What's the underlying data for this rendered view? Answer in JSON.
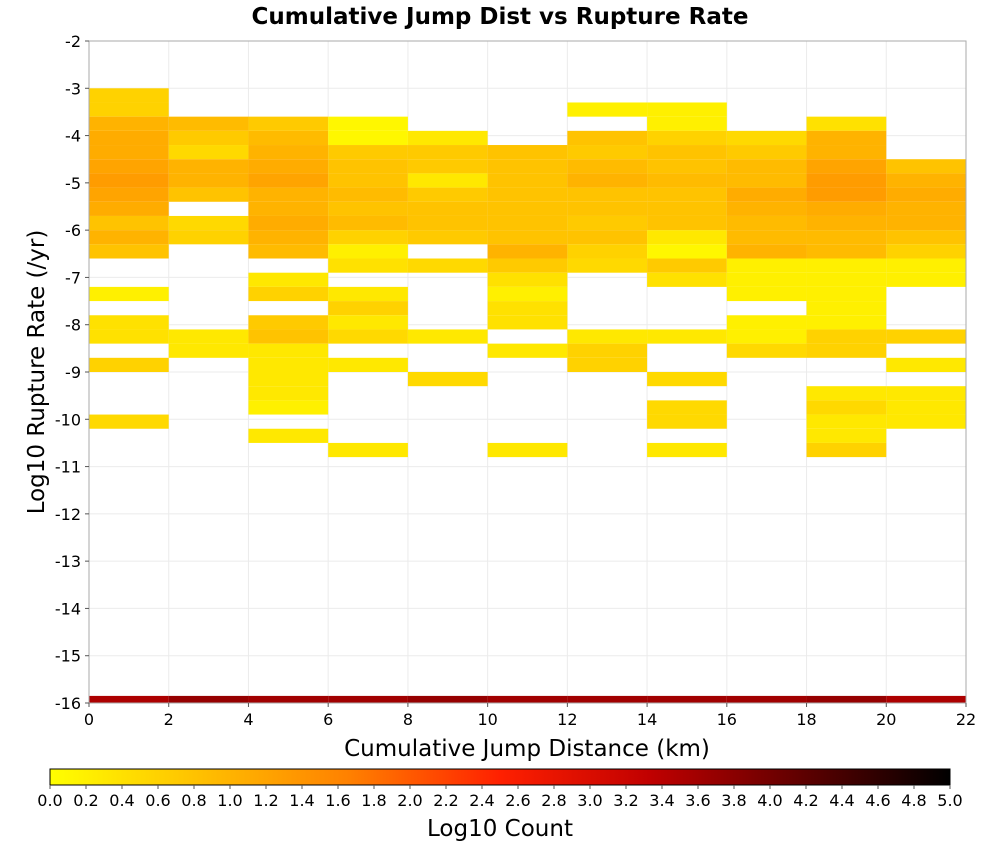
{
  "chart_data": {
    "type": "heatmap",
    "title": "Cumulative Jump Dist vs Rupture Rate",
    "xlabel": "Cumulative Jump Distance (km)",
    "ylabel": "Log10 Rupture Rate (/yr)",
    "xlim": [
      0,
      22
    ],
    "ylim": [
      -16,
      -2
    ],
    "x_ticks": [
      "0",
      "2",
      "4",
      "6",
      "8",
      "10",
      "12",
      "14",
      "16",
      "18",
      "20",
      "22"
    ],
    "y_ticks": [
      "-2",
      "-3",
      "-4",
      "-5",
      "-6",
      "-7",
      "-8",
      "-9",
      "-10",
      "-11",
      "-12",
      "-13",
      "-14",
      "-15",
      "-16"
    ],
    "grid": true,
    "colorbar": {
      "label": "Log10 Count",
      "min": 0.0,
      "max": 5.0,
      "ticks": [
        "0.0",
        "0.2",
        "0.4",
        "0.6",
        "0.8",
        "1.0",
        "1.2",
        "1.4",
        "1.6",
        "1.8",
        "2.0",
        "2.2",
        "2.4",
        "2.6",
        "2.8",
        "3.0",
        "3.2",
        "3.4",
        "3.6",
        "3.8",
        "4.0",
        "4.2",
        "4.4",
        "4.6",
        "4.8",
        "5.0"
      ],
      "colormap": [
        "#ffff00",
        "#ffc000",
        "#ff8000",
        "#ff2000",
        "#c00000",
        "#600000",
        "#000000"
      ]
    },
    "x_bin_width": 2,
    "y_bin_width": 0.3,
    "cells": [
      {
        "x": 0,
        "y": -3.15,
        "value": 0.6
      },
      {
        "x": 0,
        "y": -3.45,
        "value": 0.6
      },
      {
        "x": 0,
        "y": -3.75,
        "value": 1.0
      },
      {
        "x": 0,
        "y": -4.05,
        "value": 1.1
      },
      {
        "x": 0,
        "y": -4.35,
        "value": 1.1
      },
      {
        "x": 0,
        "y": -4.65,
        "value": 1.2
      },
      {
        "x": 0,
        "y": -4.95,
        "value": 1.3
      },
      {
        "x": 0,
        "y": -5.25,
        "value": 1.2
      },
      {
        "x": 0,
        "y": -5.55,
        "value": 1.1
      },
      {
        "x": 0,
        "y": -5.85,
        "value": 0.8
      },
      {
        "x": 0,
        "y": -6.15,
        "value": 1.0
      },
      {
        "x": 0,
        "y": -6.45,
        "value": 0.8
      },
      {
        "x": 0,
        "y": -7.35,
        "value": 0.2
      },
      {
        "x": 0,
        "y": -7.95,
        "value": 0.4
      },
      {
        "x": 0,
        "y": -8.25,
        "value": 0.4
      },
      {
        "x": 0,
        "y": -8.85,
        "value": 0.6
      },
      {
        "x": 0,
        "y": -10.05,
        "value": 0.5
      },
      {
        "x": 2,
        "y": -3.75,
        "value": 0.9
      },
      {
        "x": 2,
        "y": -4.05,
        "value": 0.7
      },
      {
        "x": 2,
        "y": -4.35,
        "value": 0.5
      },
      {
        "x": 2,
        "y": -4.65,
        "value": 1.0
      },
      {
        "x": 2,
        "y": -4.95,
        "value": 1.0
      },
      {
        "x": 2,
        "y": -5.25,
        "value": 0.8
      },
      {
        "x": 2,
        "y": -5.85,
        "value": 0.5
      },
      {
        "x": 2,
        "y": -6.15,
        "value": 0.6
      },
      {
        "x": 2,
        "y": -8.25,
        "value": 0.3
      },
      {
        "x": 2,
        "y": -8.55,
        "value": 0.3
      },
      {
        "x": 4,
        "y": -3.75,
        "value": 0.7
      },
      {
        "x": 4,
        "y": -4.05,
        "value": 0.9
      },
      {
        "x": 4,
        "y": -4.35,
        "value": 1.0
      },
      {
        "x": 4,
        "y": -4.65,
        "value": 1.1
      },
      {
        "x": 4,
        "y": -4.95,
        "value": 1.2
      },
      {
        "x": 4,
        "y": -5.25,
        "value": 1.0
      },
      {
        "x": 4,
        "y": -5.55,
        "value": 1.0
      },
      {
        "x": 4,
        "y": -5.85,
        "value": 1.1
      },
      {
        "x": 4,
        "y": -6.15,
        "value": 1.0
      },
      {
        "x": 4,
        "y": -6.45,
        "value": 0.9
      },
      {
        "x": 4,
        "y": -7.05,
        "value": 0.3
      },
      {
        "x": 4,
        "y": -7.35,
        "value": 0.6
      },
      {
        "x": 4,
        "y": -7.95,
        "value": 0.7
      },
      {
        "x": 4,
        "y": -8.25,
        "value": 0.8
      },
      {
        "x": 4,
        "y": -8.55,
        "value": 0.3
      },
      {
        "x": 4,
        "y": -8.85,
        "value": 0.3
      },
      {
        "x": 4,
        "y": -9.15,
        "value": 0.3
      },
      {
        "x": 4,
        "y": -9.45,
        "value": 0.3
      },
      {
        "x": 4,
        "y": -9.75,
        "value": 0.2
      },
      {
        "x": 4,
        "y": -10.35,
        "value": 0.3
      },
      {
        "x": 6,
        "y": -3.75,
        "value": 0.1
      },
      {
        "x": 6,
        "y": -4.05,
        "value": 0.1
      },
      {
        "x": 6,
        "y": -4.35,
        "value": 0.7
      },
      {
        "x": 6,
        "y": -4.65,
        "value": 0.8
      },
      {
        "x": 6,
        "y": -4.95,
        "value": 0.8
      },
      {
        "x": 6,
        "y": -5.25,
        "value": 0.9
      },
      {
        "x": 6,
        "y": -5.55,
        "value": 0.8
      },
      {
        "x": 6,
        "y": -5.85,
        "value": 0.9
      },
      {
        "x": 6,
        "y": -6.15,
        "value": 0.6
      },
      {
        "x": 6,
        "y": -6.45,
        "value": 0.2
      },
      {
        "x": 6,
        "y": -6.75,
        "value": 0.4
      },
      {
        "x": 6,
        "y": -7.35,
        "value": 0.3
      },
      {
        "x": 6,
        "y": -7.65,
        "value": 0.6
      },
      {
        "x": 6,
        "y": -7.95,
        "value": 0.3
      },
      {
        "x": 6,
        "y": -8.25,
        "value": 0.5
      },
      {
        "x": 6,
        "y": -8.85,
        "value": 0.3
      },
      {
        "x": 6,
        "y": -10.65,
        "value": 0.3
      },
      {
        "x": 8,
        "y": -4.05,
        "value": 0.3
      },
      {
        "x": 8,
        "y": -4.35,
        "value": 0.7
      },
      {
        "x": 8,
        "y": -4.65,
        "value": 0.7
      },
      {
        "x": 8,
        "y": -4.95,
        "value": 0.3
      },
      {
        "x": 8,
        "y": -5.25,
        "value": 0.7
      },
      {
        "x": 8,
        "y": -5.55,
        "value": 0.8
      },
      {
        "x": 8,
        "y": -5.85,
        "value": 0.8
      },
      {
        "x": 8,
        "y": -6.15,
        "value": 0.7
      },
      {
        "x": 8,
        "y": -6.75,
        "value": 0.5
      },
      {
        "x": 8,
        "y": -8.25,
        "value": 0.3
      },
      {
        "x": 8,
        "y": -9.15,
        "value": 0.5
      },
      {
        "x": 10,
        "y": -4.35,
        "value": 0.8
      },
      {
        "x": 10,
        "y": -4.65,
        "value": 0.8
      },
      {
        "x": 10,
        "y": -4.95,
        "value": 0.8
      },
      {
        "x": 10,
        "y": -5.25,
        "value": 0.8
      },
      {
        "x": 10,
        "y": -5.55,
        "value": 0.8
      },
      {
        "x": 10,
        "y": -5.85,
        "value": 0.8
      },
      {
        "x": 10,
        "y": -6.15,
        "value": 0.8
      },
      {
        "x": 10,
        "y": -6.45,
        "value": 1.0
      },
      {
        "x": 10,
        "y": -6.75,
        "value": 0.7
      },
      {
        "x": 10,
        "y": -7.05,
        "value": 0.4
      },
      {
        "x": 10,
        "y": -7.35,
        "value": 0.2
      },
      {
        "x": 10,
        "y": -7.65,
        "value": 0.4
      },
      {
        "x": 10,
        "y": -7.95,
        "value": 0.4
      },
      {
        "x": 10,
        "y": -8.55,
        "value": 0.3
      },
      {
        "x": 10,
        "y": -10.65,
        "value": 0.3
      },
      {
        "x": 12,
        "y": -3.45,
        "value": 0.2
      },
      {
        "x": 12,
        "y": -4.05,
        "value": 0.8
      },
      {
        "x": 12,
        "y": -4.35,
        "value": 0.7
      },
      {
        "x": 12,
        "y": -4.65,
        "value": 0.9
      },
      {
        "x": 12,
        "y": -4.95,
        "value": 1.0
      },
      {
        "x": 12,
        "y": -5.25,
        "value": 0.8
      },
      {
        "x": 12,
        "y": -5.55,
        "value": 0.8
      },
      {
        "x": 12,
        "y": -5.85,
        "value": 0.7
      },
      {
        "x": 12,
        "y": -6.15,
        "value": 0.8
      },
      {
        "x": 12,
        "y": -6.45,
        "value": 0.6
      },
      {
        "x": 12,
        "y": -6.75,
        "value": 0.5
      },
      {
        "x": 12,
        "y": -8.25,
        "value": 0.3
      },
      {
        "x": 12,
        "y": -8.55,
        "value": 0.6
      },
      {
        "x": 12,
        "y": -8.85,
        "value": 0.6
      },
      {
        "x": 14,
        "y": -3.45,
        "value": 0.2
      },
      {
        "x": 14,
        "y": -3.75,
        "value": 0.2
      },
      {
        "x": 14,
        "y": -4.05,
        "value": 0.6
      },
      {
        "x": 14,
        "y": -4.35,
        "value": 0.8
      },
      {
        "x": 14,
        "y": -4.65,
        "value": 0.8
      },
      {
        "x": 14,
        "y": -4.95,
        "value": 0.9
      },
      {
        "x": 14,
        "y": -5.25,
        "value": 0.8
      },
      {
        "x": 14,
        "y": -5.55,
        "value": 0.8
      },
      {
        "x": 14,
        "y": -5.85,
        "value": 0.8
      },
      {
        "x": 14,
        "y": -6.15,
        "value": 0.3
      },
      {
        "x": 14,
        "y": -6.45,
        "value": 0.1
      },
      {
        "x": 14,
        "y": -6.75,
        "value": 0.7
      },
      {
        "x": 14,
        "y": -7.05,
        "value": 0.4
      },
      {
        "x": 14,
        "y": -8.25,
        "value": 0.3
      },
      {
        "x": 14,
        "y": -9.15,
        "value": 0.5
      },
      {
        "x": 14,
        "y": -9.75,
        "value": 0.5
      },
      {
        "x": 14,
        "y": -10.05,
        "value": 0.5
      },
      {
        "x": 14,
        "y": -10.65,
        "value": 0.3
      },
      {
        "x": 16,
        "y": -4.05,
        "value": 0.5
      },
      {
        "x": 16,
        "y": -4.35,
        "value": 0.7
      },
      {
        "x": 16,
        "y": -4.65,
        "value": 0.9
      },
      {
        "x": 16,
        "y": -4.95,
        "value": 0.9
      },
      {
        "x": 16,
        "y": -5.25,
        "value": 1.1
      },
      {
        "x": 16,
        "y": -5.55,
        "value": 1.0
      },
      {
        "x": 16,
        "y": -5.85,
        "value": 0.9
      },
      {
        "x": 16,
        "y": -6.15,
        "value": 0.9
      },
      {
        "x": 16,
        "y": -6.45,
        "value": 1.0
      },
      {
        "x": 16,
        "y": -6.75,
        "value": 0.2
      },
      {
        "x": 16,
        "y": -7.05,
        "value": 0.2
      },
      {
        "x": 16,
        "y": -7.35,
        "value": 0.2
      },
      {
        "x": 16,
        "y": -7.95,
        "value": 0.2
      },
      {
        "x": 16,
        "y": -8.25,
        "value": 0.2
      },
      {
        "x": 16,
        "y": -8.55,
        "value": 0.5
      },
      {
        "x": 18,
        "y": -3.75,
        "value": 0.4
      },
      {
        "x": 18,
        "y": -4.05,
        "value": 1.0
      },
      {
        "x": 18,
        "y": -4.35,
        "value": 1.0
      },
      {
        "x": 18,
        "y": -4.65,
        "value": 1.2
      },
      {
        "x": 18,
        "y": -4.95,
        "value": 1.3
      },
      {
        "x": 18,
        "y": -5.25,
        "value": 1.3
      },
      {
        "x": 18,
        "y": -5.55,
        "value": 1.1
      },
      {
        "x": 18,
        "y": -5.85,
        "value": 1.0
      },
      {
        "x": 18,
        "y": -6.15,
        "value": 0.9
      },
      {
        "x": 18,
        "y": -6.45,
        "value": 0.9
      },
      {
        "x": 18,
        "y": -6.75,
        "value": 0.2
      },
      {
        "x": 18,
        "y": -7.05,
        "value": 0.2
      },
      {
        "x": 18,
        "y": -7.35,
        "value": 0.2
      },
      {
        "x": 18,
        "y": -7.65,
        "value": 0.2
      },
      {
        "x": 18,
        "y": -7.95,
        "value": 0.2
      },
      {
        "x": 18,
        "y": -8.25,
        "value": 0.6
      },
      {
        "x": 18,
        "y": -8.55,
        "value": 0.6
      },
      {
        "x": 18,
        "y": -9.45,
        "value": 0.3
      },
      {
        "x": 18,
        "y": -9.75,
        "value": 0.5
      },
      {
        "x": 18,
        "y": -10.05,
        "value": 0.3
      },
      {
        "x": 18,
        "y": -10.35,
        "value": 0.3
      },
      {
        "x": 18,
        "y": -10.65,
        "value": 0.6
      },
      {
        "x": 20,
        "y": -4.65,
        "value": 0.8
      },
      {
        "x": 20,
        "y": -4.95,
        "value": 1.0
      },
      {
        "x": 20,
        "y": -5.25,
        "value": 1.1
      },
      {
        "x": 20,
        "y": -5.55,
        "value": 1.0
      },
      {
        "x": 20,
        "y": -5.85,
        "value": 1.0
      },
      {
        "x": 20,
        "y": -6.15,
        "value": 0.8
      },
      {
        "x": 20,
        "y": -6.45,
        "value": 0.6
      },
      {
        "x": 20,
        "y": -6.75,
        "value": 0.2
      },
      {
        "x": 20,
        "y": -7.05,
        "value": 0.2
      },
      {
        "x": 20,
        "y": -8.25,
        "value": 0.6
      },
      {
        "x": 20,
        "y": -8.85,
        "value": 0.3
      },
      {
        "x": 20,
        "y": -9.45,
        "value": 0.3
      },
      {
        "x": 20,
        "y": -9.75,
        "value": 0.3
      },
      {
        "x": 20,
        "y": -10.05,
        "value": 0.3
      }
    ],
    "bottom_row": {
      "y": -16.0,
      "values": [
        3.5,
        3.7,
        3.6,
        3.6,
        3.7,
        3.6,
        3.6,
        3.6,
        3.6,
        3.7,
        3.5
      ]
    }
  }
}
